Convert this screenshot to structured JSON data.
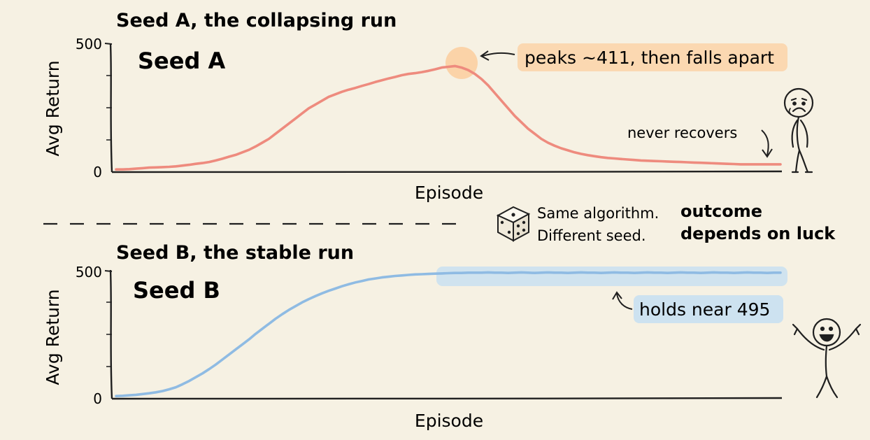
{
  "colors": {
    "background": "#f6f1e3",
    "seed_a_line": "#ee8b7e",
    "seed_a_highlight": "#fbd3a8",
    "seed_b_line": "#8fbbe3",
    "seed_b_highlight": "#c9e0f1",
    "ink": "#1f1f1f"
  },
  "chart_data": [
    {
      "type": "line",
      "title": "Seed A, the collapsing run",
      "inner_label": "Seed A",
      "xlabel": "Episode",
      "ylabel": "Avg Return",
      "y_ticks": [
        "0",
        "500"
      ],
      "ylim": [
        0,
        500
      ],
      "series": [
        {
          "name": "",
          "x": [
            0,
            1,
            2,
            3,
            4,
            5,
            6,
            7,
            8,
            9,
            10,
            11,
            12,
            13,
            14,
            15,
            16,
            17,
            18,
            19,
            20,
            21,
            22,
            23,
            24,
            25,
            26,
            27,
            28,
            29,
            30,
            31,
            32,
            33,
            34,
            35,
            36,
            37,
            38,
            39,
            40,
            41,
            42,
            43,
            44,
            45,
            46,
            47,
            48,
            49,
            50,
            51,
            52,
            53,
            54,
            55,
            56,
            57,
            58,
            59,
            60,
            61,
            62,
            63,
            64,
            65,
            66,
            67,
            68,
            69,
            70,
            71,
            72,
            73,
            74,
            75,
            76,
            77,
            78,
            79,
            80,
            81,
            82,
            83,
            84,
            85,
            86,
            87,
            88,
            89,
            90,
            91,
            92,
            93,
            94,
            95,
            96,
            97,
            98,
            99,
            100
          ],
          "values": [
            5,
            5,
            6,
            8,
            10,
            12,
            13,
            14,
            15,
            17,
            20,
            23,
            27,
            30,
            34,
            40,
            47,
            55,
            62,
            72,
            82,
            95,
            110,
            125,
            145,
            165,
            185,
            205,
            225,
            245,
            260,
            275,
            290,
            300,
            310,
            318,
            325,
            333,
            340,
            348,
            355,
            362,
            368,
            375,
            380,
            383,
            387,
            392,
            398,
            405,
            408,
            411,
            405,
            395,
            380,
            360,
            335,
            305,
            275,
            245,
            215,
            190,
            165,
            145,
            125,
            110,
            98,
            88,
            80,
            72,
            66,
            61,
            57,
            53,
            50,
            48,
            46,
            44,
            42,
            40,
            39,
            38,
            37,
            36,
            35,
            34,
            33,
            32,
            31,
            30,
            29,
            28,
            27,
            26,
            25,
            25,
            25,
            25,
            25,
            25,
            25
          ]
        }
      ],
      "annotations": {
        "peak": "peaks ~411, then falls apart",
        "tail": "never recovers"
      }
    },
    {
      "type": "line",
      "title": "Seed B, the stable run",
      "inner_label": "Seed B",
      "xlabel": "Episode",
      "ylabel": "Avg Return",
      "y_ticks": [
        "0",
        "500"
      ],
      "ylim": [
        0,
        500
      ],
      "series": [
        {
          "name": "",
          "x": [
            0,
            1,
            2,
            3,
            4,
            5,
            6,
            7,
            8,
            9,
            10,
            11,
            12,
            13,
            14,
            15,
            16,
            17,
            18,
            19,
            20,
            21,
            22,
            23,
            24,
            25,
            26,
            27,
            28,
            29,
            30,
            31,
            32,
            33,
            34,
            35,
            36,
            37,
            38,
            39,
            40,
            41,
            42,
            43,
            44,
            45,
            46,
            47,
            48,
            49,
            50,
            51,
            52,
            53,
            54,
            55,
            56,
            57,
            58,
            59,
            60,
            61,
            62,
            63,
            64,
            65,
            66,
            67,
            68,
            69,
            70,
            71,
            72,
            73,
            74,
            75,
            76,
            77,
            78,
            79,
            80,
            81,
            82,
            83,
            84,
            85,
            86,
            87,
            88,
            89,
            90,
            91,
            92,
            93,
            94,
            95,
            96,
            97,
            98,
            99,
            100
          ],
          "values": [
            5,
            6,
            8,
            10,
            13,
            16,
            20,
            25,
            32,
            40,
            52,
            65,
            80,
            95,
            112,
            130,
            150,
            170,
            190,
            210,
            230,
            252,
            272,
            292,
            312,
            330,
            347,
            362,
            377,
            390,
            402,
            413,
            423,
            432,
            441,
            449,
            456,
            462,
            468,
            472,
            476,
            479,
            482,
            484,
            486,
            488,
            489,
            490,
            491,
            492,
            493,
            494,
            494,
            495,
            495,
            495,
            496,
            495,
            495,
            494,
            495,
            496,
            495,
            494,
            495,
            496,
            495,
            495,
            494,
            495,
            496,
            495,
            495,
            494,
            495,
            496,
            495,
            495,
            494,
            495,
            496,
            495,
            495,
            494,
            495,
            496,
            495,
            495,
            494,
            495,
            496,
            495,
            495,
            494,
            495,
            496,
            495,
            495,
            494,
            495,
            495
          ]
        }
      ],
      "annotations": {
        "hold": "holds near 495"
      }
    }
  ],
  "middle": {
    "caption_line1": "Same algorithm.",
    "caption_line2": "Different seed.",
    "takeaway_line1": "outcome",
    "takeaway_line2": "depends on luck"
  },
  "icons": {
    "dice": "dice-icon",
    "sad_figure": "sad-stick-figure-icon",
    "happy_figure": "happy-stick-figure-icon"
  }
}
